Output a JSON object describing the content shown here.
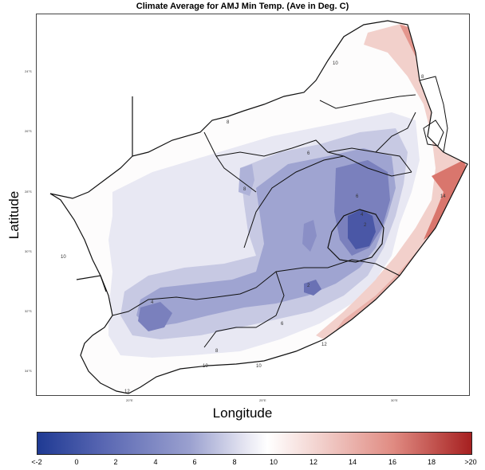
{
  "title": "Climate Average for AMJ Min Temp. (Ave in Deg. C)",
  "xlabel": "Longitude",
  "ylabel": "Latitude",
  "y_ticks": [
    "24°S",
    "26°S",
    "28°S",
    "30°S",
    "32°S",
    "34°S"
  ],
  "x_ticks": [
    "20°E",
    "25°E",
    "30°E"
  ],
  "contour_labels": [
    "10",
    "8",
    "6",
    "8",
    "6",
    "4",
    "2",
    "8",
    "10",
    "14",
    "2",
    "4",
    "6",
    "8",
    "10",
    "10",
    "12",
    "12"
  ],
  "colorbar": {
    "labels": [
      "<-2",
      "0",
      "2",
      "4",
      "6",
      "8",
      "10",
      "12",
      "14",
      "16",
      "18",
      ">20"
    ],
    "colors": [
      "#1f3a93",
      "#5866b2",
      "#9aa0cf",
      "#e6e6f2",
      "#ffffff",
      "#f2d1cd",
      "#e08b82",
      "#a62020"
    ]
  }
}
